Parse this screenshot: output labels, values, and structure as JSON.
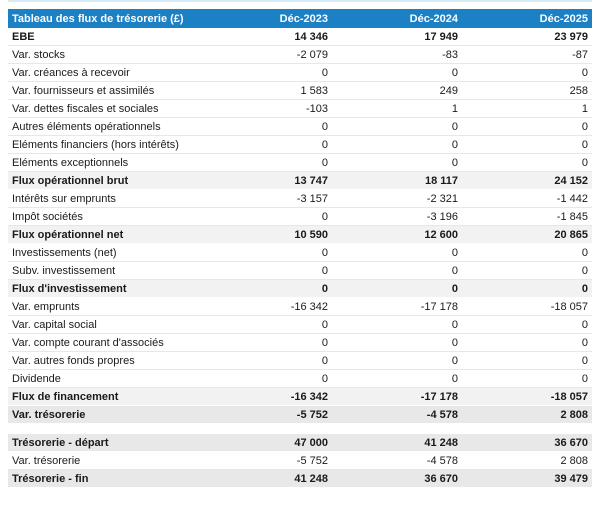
{
  "colors": {
    "header_bg": "#1b80c4",
    "header_text": "#ffffff",
    "subtotal_bg": "#f2f2f2",
    "total_bg": "#e8e8e8",
    "top_strip": "#d5ecf7"
  },
  "table": {
    "title": "Tableau des flux de trésorerie (£)",
    "columns": [
      "Déc-2023",
      "Déc-2024",
      "Déc-2025"
    ],
    "rows": [
      {
        "label": "EBE",
        "values": [
          "14 346",
          "17 949",
          "23 979"
        ],
        "style": "bold"
      },
      {
        "label": "Var. stocks",
        "values": [
          "-2 079",
          "-83",
          "-87"
        ],
        "style": "normal"
      },
      {
        "label": "Var. créances à recevoir",
        "values": [
          "0",
          "0",
          "0"
        ],
        "style": "normal"
      },
      {
        "label": "Var. fournisseurs et assimilés",
        "values": [
          "1 583",
          "249",
          "258"
        ],
        "style": "normal"
      },
      {
        "label": "Var. dettes fiscales et sociales",
        "values": [
          "-103",
          "1",
          "1"
        ],
        "style": "normal"
      },
      {
        "label": "Autres éléments opérationnels",
        "values": [
          "0",
          "0",
          "0"
        ],
        "style": "normal"
      },
      {
        "label": "Eléments financiers (hors intérêts)",
        "values": [
          "0",
          "0",
          "0"
        ],
        "style": "normal"
      },
      {
        "label": "Eléments exceptionnels",
        "values": [
          "0",
          "0",
          "0"
        ],
        "style": "normal"
      },
      {
        "label": "Flux opérationnel brut",
        "values": [
          "13 747",
          "18 117",
          "24 152"
        ],
        "style": "subtotal"
      },
      {
        "label": "Intérêts sur emprunts",
        "values": [
          "-3 157",
          "-2 321",
          "-1 442"
        ],
        "style": "normal"
      },
      {
        "label": "Impôt sociétés",
        "values": [
          "0",
          "-3 196",
          "-1 845"
        ],
        "style": "normal"
      },
      {
        "label": "Flux opérationnel net",
        "values": [
          "10 590",
          "12 600",
          "20 865"
        ],
        "style": "subtotal"
      },
      {
        "label": "Investissements (net)",
        "values": [
          "0",
          "0",
          "0"
        ],
        "style": "normal"
      },
      {
        "label": "Subv. investissement",
        "values": [
          "0",
          "0",
          "0"
        ],
        "style": "normal"
      },
      {
        "label": "Flux d'investissement",
        "values": [
          "0",
          "0",
          "0"
        ],
        "style": "subtotal"
      },
      {
        "label": "Var. emprunts",
        "values": [
          "-16 342",
          "-17 178",
          "-18 057"
        ],
        "style": "normal"
      },
      {
        "label": "Var. capital social",
        "values": [
          "0",
          "0",
          "0"
        ],
        "style": "normal"
      },
      {
        "label": "Var. compte courant d'associés",
        "values": [
          "0",
          "0",
          "0"
        ],
        "style": "normal"
      },
      {
        "label": "Var. autres fonds propres",
        "values": [
          "0",
          "0",
          "0"
        ],
        "style": "normal"
      },
      {
        "label": "Dividende",
        "values": [
          "0",
          "0",
          "0"
        ],
        "style": "normal"
      },
      {
        "label": "Flux de financement",
        "values": [
          "-16 342",
          "-17 178",
          "-18 057"
        ],
        "style": "subtotal"
      },
      {
        "label": "Var. trésorerie",
        "values": [
          "-5 752",
          "-4 578",
          "2 808"
        ],
        "style": "total"
      },
      {
        "label": "Trésorerie - départ",
        "values": [
          "47 000",
          "41 248",
          "36 670"
        ],
        "style": "total",
        "gap_before": true
      },
      {
        "label": "Var. trésorerie",
        "values": [
          "-5 752",
          "-4 578",
          "2 808"
        ],
        "style": "normal"
      },
      {
        "label": "Trésorerie - fin",
        "values": [
          "41 248",
          "36 670",
          "39 479"
        ],
        "style": "total"
      }
    ]
  }
}
